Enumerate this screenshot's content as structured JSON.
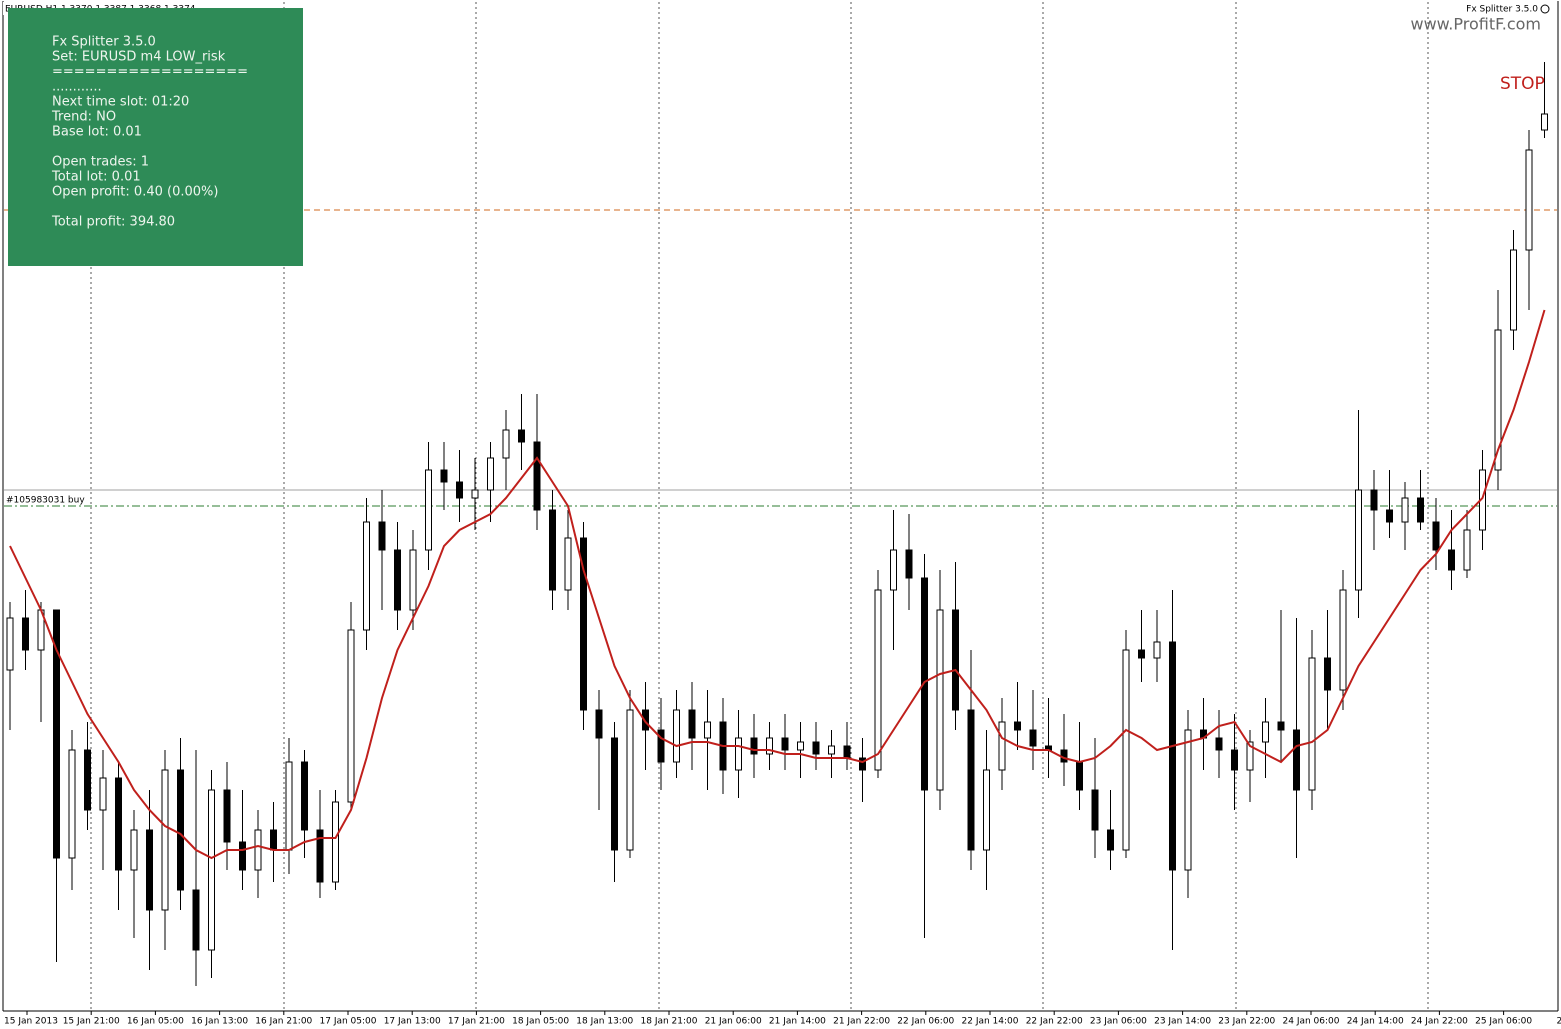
{
  "header": {
    "symbol_info": "EURUSD,H1  1.3370 1.3387 1.3368 1.3374",
    "expert": "Fx Splitter 3.5.0",
    "watermark": "www.ProfitF.com",
    "stop_label": "STOP"
  },
  "panel": {
    "groups": [
      [
        "Fx Splitter 3.5.0",
        "Set: EURUSD m4 LOW_risk",
        "==================",
        "............",
        "Next time slot: 01:20",
        "Trend: NO",
        "Base lot: 0.01"
      ],
      [
        "Open trades: 1",
        "Total lot: 0.01",
        "Open profit: 0.40 (0.00%)"
      ],
      [
        "Total profit: 394.80"
      ]
    ],
    "color": "#2e8b57"
  },
  "chart_data": {
    "type": "candlestick",
    "ylim": [
      1.315,
      1.34
    ],
    "up_color": "#ffffff",
    "down_color": "#000000",
    "open": [
      1.3235,
      1.3248,
      1.324,
      1.325,
      1.3188,
      1.3215,
      1.32,
      1.3208,
      1.3185,
      1.3195,
      1.3175,
      1.321,
      1.318,
      1.3165,
      1.3205,
      1.3192,
      1.3185,
      1.3195,
      1.319,
      1.3212,
      1.3195,
      1.3182,
      1.3202,
      1.3245,
      1.3272,
      1.3265,
      1.325,
      1.3265,
      1.3285,
      1.3282,
      1.3278,
      1.328,
      1.3288,
      1.3295,
      1.3292,
      1.3275,
      1.3255,
      1.3268,
      1.3225,
      1.3218,
      1.319,
      1.3225,
      1.322,
      1.3212,
      1.3225,
      1.3218,
      1.3222,
      1.321,
      1.3218,
      1.3214,
      1.3218,
      1.3215,
      1.3217,
      1.3214,
      1.3216,
      1.3213,
      1.321,
      1.3255,
      1.3265,
      1.3258,
      1.3205,
      1.325,
      1.3225,
      1.319,
      1.321,
      1.3222,
      1.322,
      1.3216,
      1.3215,
      1.3212,
      1.3205,
      1.3195,
      1.319,
      1.324,
      1.3238,
      1.3242,
      1.3185,
      1.322,
      1.3218,
      1.3215,
      1.321,
      1.3217,
      1.3222,
      1.322,
      1.3205,
      1.3238,
      1.323,
      1.3255,
      1.328,
      1.3275,
      1.3272,
      1.3278,
      1.3272,
      1.3265,
      1.326,
      1.327,
      1.3285,
      1.332,
      1.334,
      1.337
    ],
    "high": [
      1.3252,
      1.3255,
      1.3252,
      1.325,
      1.322,
      1.3222,
      1.3215,
      1.3212,
      1.32,
      1.3205,
      1.3215,
      1.3218,
      1.3215,
      1.321,
      1.3212,
      1.3205,
      1.32,
      1.3202,
      1.3218,
      1.3215,
      1.3205,
      1.3205,
      1.3252,
      1.3278,
      1.328,
      1.3272,
      1.327,
      1.3292,
      1.3292,
      1.329,
      1.3288,
      1.3292,
      1.33,
      1.3304,
      1.3304,
      1.328,
      1.3275,
      1.3272,
      1.323,
      1.3222,
      1.323,
      1.3232,
      1.3228,
      1.323,
      1.3232,
      1.323,
      1.3228,
      1.3225,
      1.3224,
      1.3222,
      1.3224,
      1.3222,
      1.3222,
      1.322,
      1.3222,
      1.3218,
      1.326,
      1.3275,
      1.3274,
      1.3264,
      1.326,
      1.3262,
      1.324,
      1.322,
      1.3228,
      1.3232,
      1.323,
      1.3228,
      1.3224,
      1.3222,
      1.3218,
      1.3205,
      1.3245,
      1.325,
      1.325,
      1.3255,
      1.3225,
      1.3228,
      1.3225,
      1.3224,
      1.322,
      1.3228,
      1.325,
      1.3248,
      1.3245,
      1.325,
      1.326,
      1.33,
      1.3285,
      1.3285,
      1.3282,
      1.3285,
      1.3278,
      1.3275,
      1.3275,
      1.329,
      1.333,
      1.3345,
      1.337,
      1.3387
    ],
    "low": [
      1.322,
      1.3235,
      1.3222,
      1.3162,
      1.318,
      1.3195,
      1.3185,
      1.3175,
      1.3168,
      1.316,
      1.3165,
      1.3175,
      1.3156,
      1.3158,
      1.3185,
      1.318,
      1.3178,
      1.3182,
      1.3184,
      1.3188,
      1.3178,
      1.318,
      1.32,
      1.324,
      1.325,
      1.3245,
      1.3245,
      1.326,
      1.3275,
      1.3272,
      1.327,
      1.3272,
      1.328,
      1.3285,
      1.327,
      1.325,
      1.325,
      1.322,
      1.32,
      1.3182,
      1.3188,
      1.321,
      1.3205,
      1.3208,
      1.321,
      1.3205,
      1.3204,
      1.3203,
      1.3208,
      1.321,
      1.321,
      1.3208,
      1.321,
      1.3208,
      1.321,
      1.3202,
      1.3208,
      1.324,
      1.325,
      1.3168,
      1.32,
      1.322,
      1.3185,
      1.318,
      1.3205,
      1.3215,
      1.321,
      1.3208,
      1.3206,
      1.32,
      1.3188,
      1.3185,
      1.3188,
      1.3232,
      1.3232,
      1.3165,
      1.3178,
      1.321,
      1.3208,
      1.32,
      1.3202,
      1.3208,
      1.3212,
      1.3188,
      1.32,
      1.322,
      1.3225,
      1.3248,
      1.3265,
      1.3268,
      1.3265,
      1.327,
      1.326,
      1.3255,
      1.3258,
      1.3265,
      1.328,
      1.3315,
      1.3325,
      1.3368
    ],
    "close": [
      1.3248,
      1.324,
      1.325,
      1.3188,
      1.3215,
      1.32,
      1.3208,
      1.3185,
      1.3195,
      1.3175,
      1.321,
      1.318,
      1.3165,
      1.3205,
      1.3192,
      1.3185,
      1.3195,
      1.319,
      1.3212,
      1.3195,
      1.3182,
      1.3202,
      1.3245,
      1.3272,
      1.3265,
      1.325,
      1.3265,
      1.3285,
      1.3282,
      1.3278,
      1.328,
      1.3288,
      1.3295,
      1.3292,
      1.3275,
      1.3255,
      1.3268,
      1.3225,
      1.3218,
      1.319,
      1.3225,
      1.322,
      1.3212,
      1.3225,
      1.3218,
      1.3222,
      1.321,
      1.3218,
      1.3214,
      1.3218,
      1.3215,
      1.3217,
      1.3214,
      1.3216,
      1.3213,
      1.321,
      1.3255,
      1.3265,
      1.3258,
      1.3205,
      1.325,
      1.3225,
      1.319,
      1.321,
      1.3222,
      1.322,
      1.3216,
      1.3215,
      1.3212,
      1.3205,
      1.3195,
      1.319,
      1.324,
      1.3238,
      1.3242,
      1.3185,
      1.322,
      1.3218,
      1.3215,
      1.321,
      1.3217,
      1.3222,
      1.322,
      1.3205,
      1.3238,
      1.323,
      1.3255,
      1.328,
      1.3275,
      1.3272,
      1.3278,
      1.3272,
      1.3265,
      1.326,
      1.327,
      1.3285,
      1.332,
      1.334,
      1.3365,
      1.3374
    ],
    "overlay": {
      "color": "#c0201c",
      "values": [
        1.3266,
        1.3258,
        1.325,
        1.324,
        1.3232,
        1.3224,
        1.3218,
        1.3212,
        1.3205,
        1.32,
        1.3196,
        1.3194,
        1.319,
        1.3188,
        1.319,
        1.319,
        1.3191,
        1.319,
        1.319,
        1.3192,
        1.3193,
        1.3193,
        1.32,
        1.3213,
        1.3228,
        1.324,
        1.3248,
        1.3256,
        1.3266,
        1.327,
        1.3272,
        1.3274,
        1.3278,
        1.3283,
        1.3288,
        1.3282,
        1.3276,
        1.326,
        1.3248,
        1.3236,
        1.3228,
        1.3222,
        1.3218,
        1.3216,
        1.3217,
        1.3217,
        1.3216,
        1.3216,
        1.3215,
        1.3215,
        1.3214,
        1.3214,
        1.3213,
        1.3213,
        1.3213,
        1.3212,
        1.3214,
        1.322,
        1.3226,
        1.3232,
        1.3234,
        1.3235,
        1.323,
        1.3225,
        1.3218,
        1.3216,
        1.3215,
        1.3215,
        1.3213,
        1.3212,
        1.3213,
        1.3216,
        1.322,
        1.3218,
        1.3215,
        1.3216,
        1.3217,
        1.3218,
        1.3221,
        1.3222,
        1.3216,
        1.3214,
        1.3212,
        1.3216,
        1.3217,
        1.322,
        1.3228,
        1.3236,
        1.3242,
        1.3248,
        1.3254,
        1.326,
        1.3264,
        1.327,
        1.3274,
        1.3278,
        1.329,
        1.33,
        1.3312,
        1.3325
      ]
    },
    "levels": [
      {
        "value": 1.335,
        "color": "#d2691e",
        "style": "dash"
      },
      {
        "value": 1.328,
        "color": "#a0a0a0",
        "style": "solid"
      },
      {
        "value": 1.3276,
        "color": "#2e7d32",
        "style": "dashdot",
        "label": "#105983031 buy"
      }
    ],
    "xtick_labels": [
      "15 Jan 2013",
      "15 Jan 21:00",
      "16 Jan 05:00",
      "16 Jan 13:00",
      "16 Jan 21:00",
      "17 Jan 05:00",
      "17 Jan 13:00",
      "17 Jan 21:00",
      "18 Jan 05:00",
      "18 Jan 13:00",
      "18 Jan 21:00",
      "21 Jan 06:00",
      "21 Jan 14:00",
      "21 Jan 22:00",
      "22 Jan 06:00",
      "22 Jan 14:00",
      "22 Jan 22:00",
      "23 Jan 06:00",
      "23 Jan 14:00",
      "23 Jan 22:00",
      "24 Jan 06:00",
      "24 Jan 14:00",
      "24 Jan 22:00",
      "25 Jan 06:00",
      "25 Ja"
    ]
  }
}
